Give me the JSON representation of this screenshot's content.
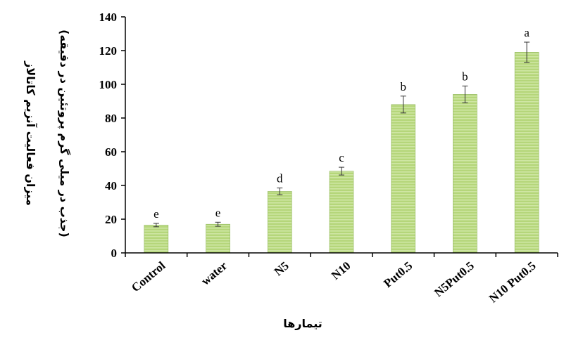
{
  "chart_data": {
    "type": "bar",
    "categories": [
      "Control",
      "water",
      "N5",
      "N10",
      "Put0.5",
      "N5Put0.5",
      "N10 Put0.5"
    ],
    "values": [
      16.5,
      17,
      36.5,
      48.5,
      88,
      94,
      119
    ],
    "errors": [
      1,
      1.2,
      2,
      2.3,
      5,
      5,
      6
    ],
    "letters": [
      "e",
      "e",
      "d",
      "c",
      "b",
      "b",
      "a"
    ],
    "xlabel": "تیمارها",
    "ylabel_line1": "میزان فعالیت آنزیم کاتالاز",
    "ylabel_line2": "(جذب در میلی گرم پروتئین در دقیقه)",
    "ylim": [
      0,
      140
    ],
    "yticks": [
      0,
      20,
      40,
      60,
      80,
      100,
      120,
      140
    ],
    "colors": {
      "bar_fill": "#b5d67a",
      "bar_stripe": "#cfe6a4",
      "bar_edge": "#8fb65a",
      "axis": "#000000"
    },
    "grid": false
  }
}
